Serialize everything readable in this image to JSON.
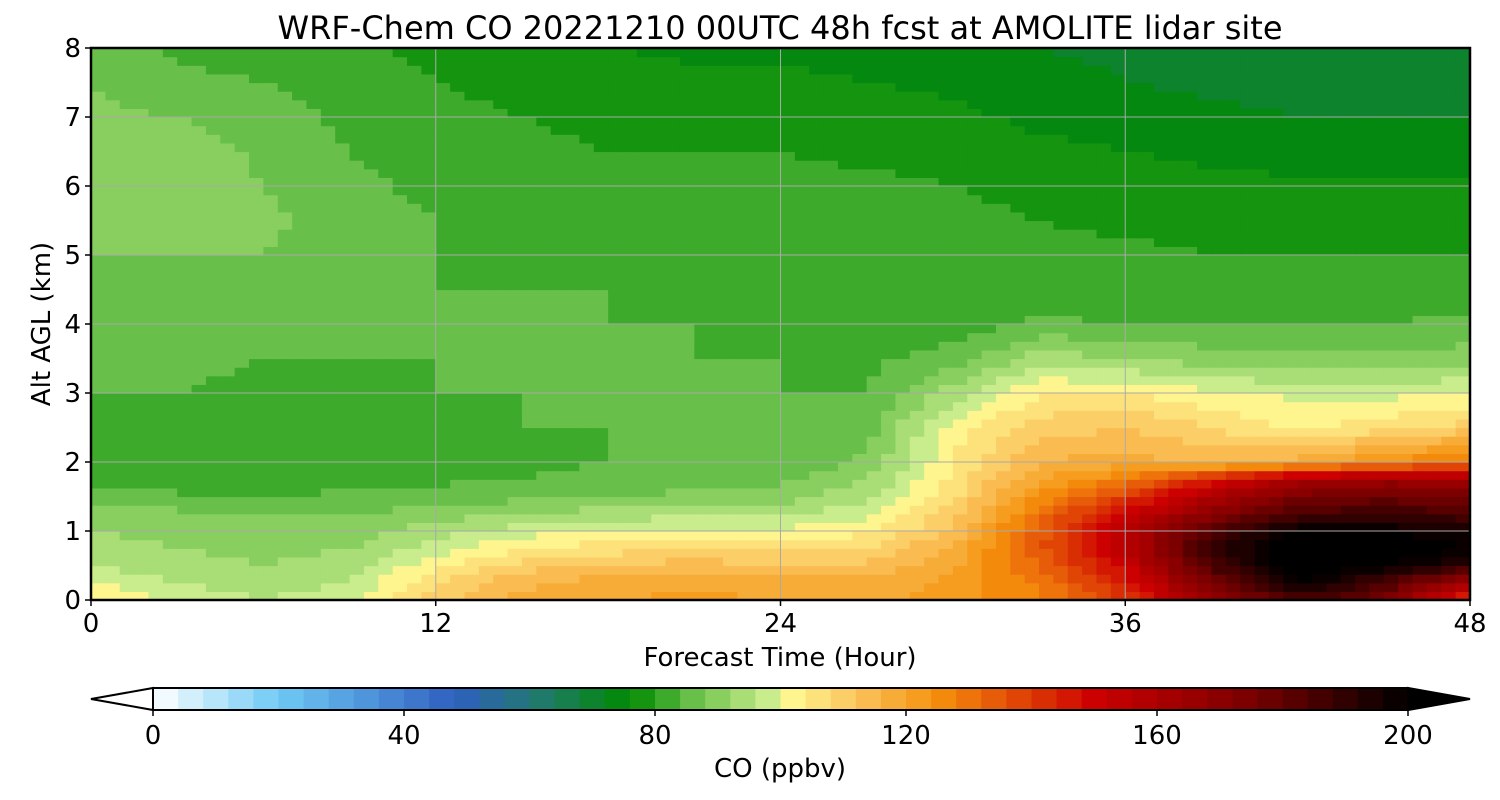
{
  "chart_data": {
    "type": "heatmap",
    "title": "WRF-Chem CO  20221210 00UTC 48h fcst at AMOLITE lidar site",
    "xlabel": "Forecast Time (Hour)",
    "ylabel": "Alt AGL (km)",
    "xlim": [
      0,
      48
    ],
    "ylim": [
      0,
      8
    ],
    "xticks": [
      "0",
      "12",
      "24",
      "36",
      "48"
    ],
    "yticks": [
      "0",
      "1",
      "2",
      "3",
      "4",
      "5",
      "6",
      "7",
      "8"
    ],
    "grid": true,
    "x_hours": [
      0,
      3,
      6,
      9,
      12,
      15,
      18,
      21,
      24,
      27,
      30,
      33,
      36,
      39,
      42,
      45,
      48
    ],
    "y_km": [
      0,
      0.25,
      0.5,
      0.75,
      1,
      1.25,
      1.5,
      1.75,
      2,
      2.5,
      3,
      3.5,
      4,
      4.5,
      5,
      5.5,
      6,
      6.5,
      7,
      7.5,
      8
    ],
    "z_ppbv": [
      [
        105,
        98,
        96,
        98,
        110,
        118,
        120,
        121,
        120,
        118,
        122,
        128,
        140,
        165,
        185,
        175,
        140
      ],
      [
        100,
        96,
        94,
        96,
        108,
        115,
        118,
        119,
        118,
        117,
        121,
        128,
        145,
        175,
        200,
        185,
        160
      ],
      [
        96,
        93,
        92,
        94,
        103,
        110,
        113,
        114,
        113,
        113,
        119,
        132,
        150,
        185,
        205,
        200,
        190
      ],
      [
        93,
        92,
        91,
        92,
        98,
        104,
        106,
        107,
        107,
        108,
        117,
        135,
        155,
        190,
        205,
        205,
        200
      ],
      [
        92,
        91,
        90,
        90,
        94,
        98,
        100,
        101,
        101,
        103,
        113,
        134,
        155,
        185,
        200,
        200,
        195
      ],
      [
        90,
        89,
        88,
        88,
        90,
        92,
        94,
        95,
        96,
        99,
        110,
        130,
        150,
        170,
        185,
        188,
        185
      ],
      [
        86,
        85,
        84,
        85,
        86,
        87,
        88,
        89,
        90,
        95,
        107,
        125,
        140,
        160,
        175,
        178,
        175
      ],
      [
        82,
        81,
        81,
        82,
        83,
        84,
        85,
        86,
        87,
        92,
        105,
        120,
        128,
        145,
        160,
        165,
        162
      ],
      [
        81,
        80,
        80,
        81,
        82,
        83,
        84,
        84,
        85,
        89,
        104,
        116,
        118,
        115,
        118,
        125,
        130
      ],
      [
        82,
        82,
        81,
        82,
        83,
        84,
        84,
        84,
        84,
        86,
        102,
        110,
        112,
        108,
        103,
        106,
        110
      ],
      [
        84,
        84,
        83,
        83,
        84,
        84,
        84,
        84,
        84,
        84,
        94,
        104,
        104,
        101,
        99,
        99,
        100
      ],
      [
        85,
        85,
        84,
        84,
        84,
        84,
        84,
        84,
        84,
        83,
        86,
        94,
        92,
        90,
        89,
        89,
        90
      ],
      [
        86,
        86,
        86,
        85,
        84,
        84,
        84,
        84,
        83,
        82,
        81,
        85,
        84,
        84,
        84,
        84,
        85
      ],
      [
        87,
        87,
        87,
        86,
        84,
        84,
        84,
        83,
        82,
        82,
        80,
        81,
        81,
        82,
        82,
        82,
        82
      ],
      [
        88,
        88,
        88,
        86,
        84,
        83,
        82,
        82,
        82,
        82,
        81,
        81,
        81,
        80,
        80,
        80,
        80
      ],
      [
        89,
        90,
        89,
        86,
        84,
        83,
        82,
        81,
        81,
        81,
        81,
        80,
        79,
        79,
        79,
        79,
        79
      ],
      [
        90,
        92,
        88,
        85,
        83,
        82,
        81,
        81,
        81,
        81,
        80,
        79,
        78,
        77,
        77,
        77,
        77
      ],
      [
        90,
        91,
        87,
        84,
        82,
        81,
        80,
        80,
        80,
        79,
        78,
        77,
        76,
        75,
        74,
        74,
        74
      ],
      [
        89,
        88,
        86,
        83,
        81,
        80,
        79,
        79,
        79,
        78,
        77,
        75,
        74,
        73,
        72,
        72,
        72
      ],
      [
        88,
        85,
        84,
        82,
        80,
        79,
        78,
        77,
        77,
        76,
        75,
        74,
        72,
        71,
        70,
        70,
        71
      ],
      [
        87,
        83,
        82,
        81,
        79,
        78,
        76,
        75,
        75,
        74,
        73,
        72,
        71,
        69,
        68,
        68,
        70
      ]
    ],
    "colorbar": {
      "label": "CO  (ppbv)",
      "min": 0,
      "max": 200,
      "extend": "both",
      "ticks": [
        "0",
        "40",
        "80",
        "120",
        "160",
        "200"
      ],
      "stops": [
        {
          "v": 0,
          "c": "#ffffff"
        },
        {
          "v": 20,
          "c": "#6fcaf5"
        },
        {
          "v": 48,
          "c": "#2f5fc0"
        },
        {
          "v": 62,
          "c": "#1f7a6a"
        },
        {
          "v": 76,
          "c": "#008a00"
        },
        {
          "v": 86,
          "c": "#68c04a"
        },
        {
          "v": 98,
          "c": "#c9ec8c"
        },
        {
          "v": 100,
          "c": "#ffff99"
        },
        {
          "v": 112,
          "c": "#fbc45e"
        },
        {
          "v": 125,
          "c": "#f5900c"
        },
        {
          "v": 150,
          "c": "#cc0000"
        },
        {
          "v": 175,
          "c": "#7a0000"
        },
        {
          "v": 200,
          "c": "#000000"
        }
      ]
    }
  }
}
